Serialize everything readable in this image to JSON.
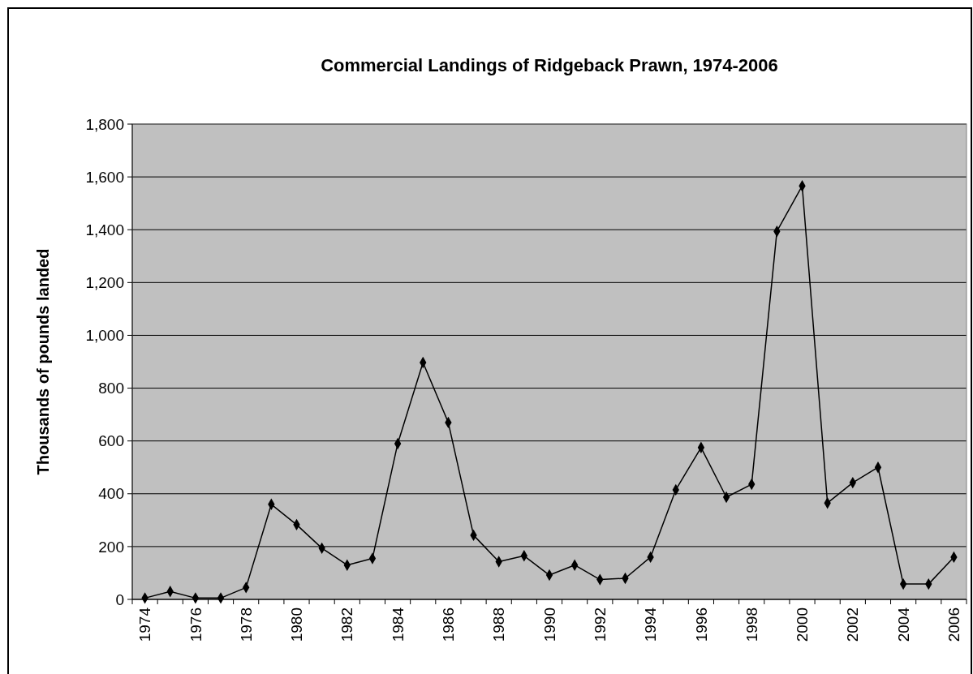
{
  "chart_data": {
    "type": "line",
    "title": "Commercial Landings of Ridgeback Prawn, 1974-2006",
    "ylabel": "Thousands of pounds landed",
    "categories": [
      "1974",
      null,
      "1976",
      null,
      "1978",
      null,
      "1980",
      null,
      "1982",
      null,
      "1984",
      null,
      "1986",
      null,
      "1988",
      null,
      "1990",
      null,
      "1992",
      null,
      "1994",
      null,
      "1996",
      null,
      "1998",
      null,
      "2000",
      null,
      "2002",
      null,
      "2004",
      null,
      "2006"
    ],
    "series": [
      {
        "color": "#000000",
        "values": [
          5,
          30,
          5,
          5,
          45,
          360,
          283,
          194,
          130,
          155,
          590,
          897,
          670,
          243,
          143,
          165,
          92,
          130,
          75,
          80,
          160,
          415,
          575,
          387,
          436,
          1394,
          1566,
          365,
          442,
          500,
          58,
          58,
          160
        ]
      }
    ],
    "ylim": [
      0,
      1800
    ],
    "yticks": [
      {
        "value": 0,
        "label": "0"
      },
      {
        "value": 200,
        "label": "200"
      },
      {
        "value": 400,
        "label": "400"
      },
      {
        "value": 600,
        "label": "600"
      },
      {
        "value": 800,
        "label": "800"
      },
      {
        "value": 1000,
        "label": "1,000"
      },
      {
        "value": 1200,
        "label": "1,200"
      },
      {
        "value": 1400,
        "label": "1,400"
      },
      {
        "value": 1600,
        "label": "1,600"
      },
      {
        "value": 1800,
        "label": "1,800"
      }
    ],
    "grid": "y",
    "marker": "diamond",
    "line_style": "solid"
  }
}
